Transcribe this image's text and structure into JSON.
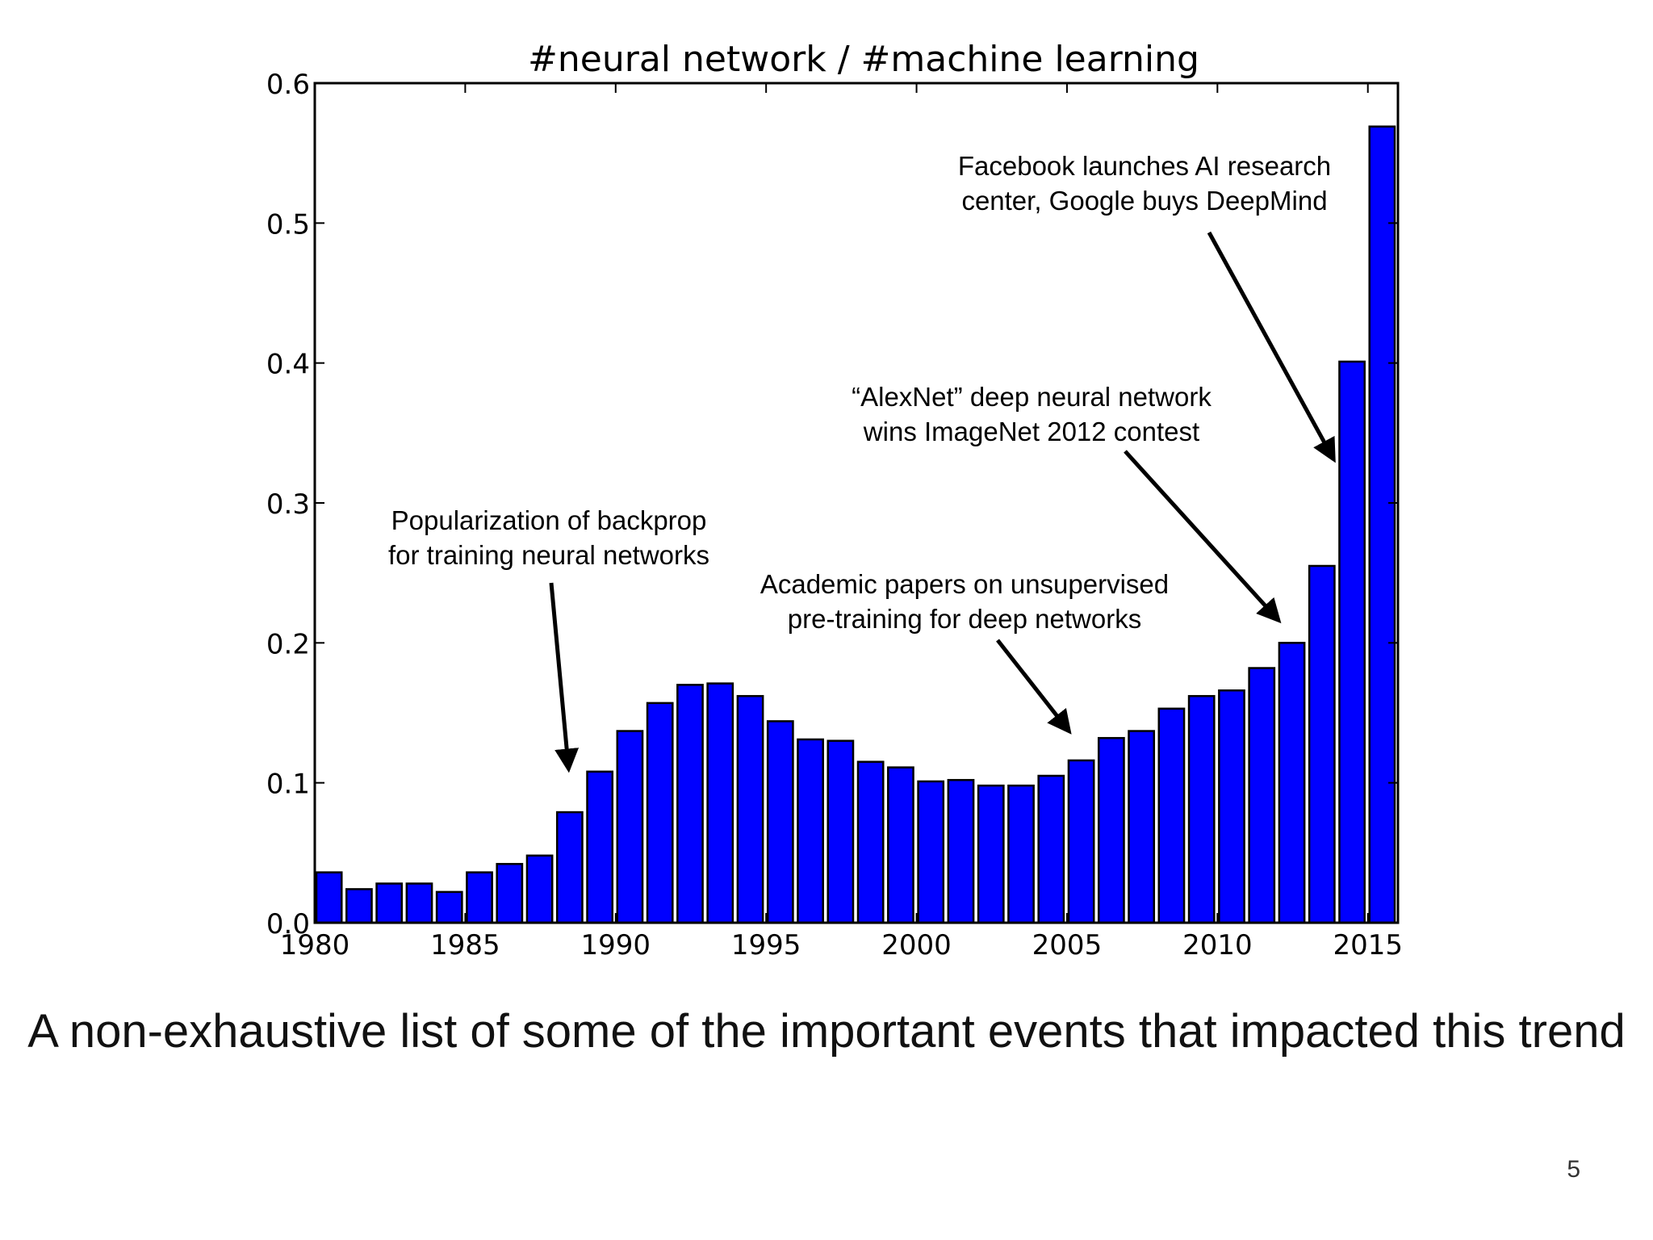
{
  "chart_data": {
    "type": "bar",
    "title": "#neural network / #machine learning",
    "xlabel": "",
    "ylabel": "",
    "xlim": [
      1980,
      2016
    ],
    "ylim": [
      0,
      0.6
    ],
    "x_ticks": [
      "1980",
      "1985",
      "1990",
      "1995",
      "2000",
      "2005",
      "2010",
      "2015"
    ],
    "y_ticks": [
      "0.0",
      "0.1",
      "0.2",
      "0.3",
      "0.4",
      "0.5",
      "0.6"
    ],
    "bar_color": "#0000ff",
    "x": [
      1980,
      1981,
      1982,
      1983,
      1984,
      1985,
      1986,
      1987,
      1988,
      1989,
      1990,
      1991,
      1992,
      1993,
      1994,
      1995,
      1996,
      1997,
      1998,
      1999,
      2000,
      2001,
      2002,
      2003,
      2004,
      2005,
      2006,
      2007,
      2008,
      2009,
      2010,
      2011,
      2012,
      2013,
      2014,
      2015
    ],
    "values": [
      0.036,
      0.024,
      0.028,
      0.028,
      0.022,
      0.036,
      0.042,
      0.048,
      0.079,
      0.108,
      0.137,
      0.157,
      0.17,
      0.171,
      0.162,
      0.144,
      0.131,
      0.13,
      0.115,
      0.111,
      0.101,
      0.102,
      0.098,
      0.098,
      0.105,
      0.116,
      0.132,
      0.137,
      0.153,
      0.162,
      0.166,
      0.182,
      0.2,
      0.255,
      0.401,
      0.569
    ],
    "annotations": [
      {
        "lines": [
          "Popularization of backprop",
          "for training neural networks"
        ],
        "target_x": 1988,
        "target_y": 0.095
      },
      {
        "lines": [
          "Academic papers on unsupervised",
          "pre-training for deep networks"
        ],
        "target_x": 2005,
        "target_y": 0.125
      },
      {
        "lines": [
          "“AlexNet” deep neural network",
          "wins ImageNet 2012 contest"
        ],
        "target_x": 2012,
        "target_y": 0.205
      },
      {
        "lines": [
          "Facebook launches AI research",
          "center, Google buys DeepMind"
        ],
        "target_x": 2013.7,
        "target_y": 0.318
      }
    ]
  },
  "caption": "A non-exhaustive list of some of the important events that impacted this trend",
  "slide_number": "5"
}
